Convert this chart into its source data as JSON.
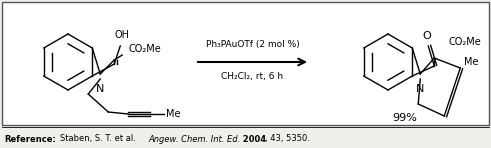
{
  "bg_color": "#f0f0eb",
  "border_color": "#555555",
  "reagent_line1": "Ph₃PAuOTf (2 mol %)",
  "reagent_line2": "CH₂Cl₂, rt, 6 h",
  "yield_text": "99%",
  "ref_label": "Reference:",
  "ref_normal": "Staben, S. T. et al. ",
  "ref_italic": "Angew. Chem. Int. Ed.",
  "ref_bold": " 2004",
  "ref_end": ", 43, 5350."
}
